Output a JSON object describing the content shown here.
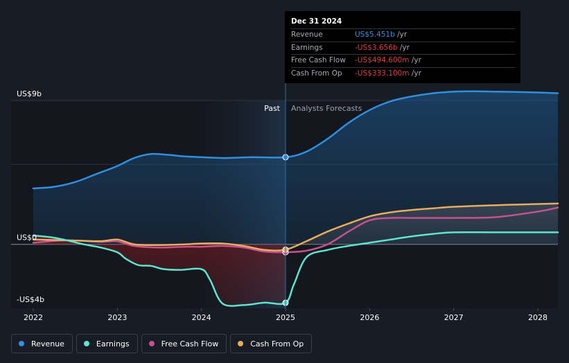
{
  "chart_data": {
    "type": "line",
    "x_ticks": [
      "2022",
      "2023",
      "2024",
      "2025",
      "2026",
      "2027",
      "2028"
    ],
    "y_tick_labels": [
      "US$9b",
      "US$0",
      "-US$4b"
    ],
    "region_labels": {
      "past": "Past",
      "forecast": "Analysts Forecasts"
    },
    "ylim": [
      -4,
      9
    ],
    "series": [
      {
        "name": "Revenue",
        "color": "#2f8fe0",
        "points": [
          [
            2022.0,
            3.5
          ],
          [
            2022.25,
            3.6
          ],
          [
            2022.5,
            3.9
          ],
          [
            2022.75,
            4.4
          ],
          [
            2023.0,
            4.9
          ],
          [
            2023.2,
            5.4
          ],
          [
            2023.4,
            5.65
          ],
          [
            2023.6,
            5.6
          ],
          [
            2023.8,
            5.5
          ],
          [
            2024.0,
            5.45
          ],
          [
            2024.3,
            5.4
          ],
          [
            2024.6,
            5.45
          ],
          [
            2025.0,
            5.451
          ],
          [
            2025.25,
            5.8
          ],
          [
            2025.5,
            6.6
          ],
          [
            2025.75,
            7.6
          ],
          [
            2026.0,
            8.4
          ],
          [
            2026.25,
            8.95
          ],
          [
            2026.5,
            9.25
          ],
          [
            2026.75,
            9.45
          ],
          [
            2027.0,
            9.55
          ],
          [
            2027.25,
            9.57
          ],
          [
            2027.5,
            9.55
          ],
          [
            2027.75,
            9.53
          ],
          [
            2028.0,
            9.5
          ],
          [
            2028.25,
            9.45
          ]
        ]
      },
      {
        "name": "Earnings",
        "color": "#5ce6cf",
        "points": [
          [
            2022.0,
            0.55
          ],
          [
            2022.2,
            0.45
          ],
          [
            2022.4,
            0.25
          ],
          [
            2022.6,
            0.0
          ],
          [
            2022.8,
            -0.2
          ],
          [
            2023.0,
            -0.5
          ],
          [
            2023.1,
            -0.9
          ],
          [
            2023.25,
            -1.3
          ],
          [
            2023.4,
            -1.35
          ],
          [
            2023.55,
            -1.55
          ],
          [
            2023.75,
            -1.6
          ],
          [
            2024.0,
            -1.55
          ],
          [
            2024.1,
            -2.2
          ],
          [
            2024.25,
            -3.7
          ],
          [
            2024.5,
            -3.8
          ],
          [
            2024.75,
            -3.65
          ],
          [
            2025.0,
            -3.656
          ],
          [
            2025.1,
            -2.5
          ],
          [
            2025.25,
            -0.8
          ],
          [
            2025.5,
            -0.35
          ],
          [
            2025.75,
            -0.1
          ],
          [
            2026.0,
            0.1
          ],
          [
            2026.25,
            0.3
          ],
          [
            2026.5,
            0.5
          ],
          [
            2026.75,
            0.65
          ],
          [
            2027.0,
            0.75
          ],
          [
            2027.5,
            0.75
          ],
          [
            2028.0,
            0.75
          ],
          [
            2028.25,
            0.75
          ]
        ]
      },
      {
        "name": "Free Cash Flow",
        "color": "#c7508f",
        "points": [
          [
            2022.0,
            0.1
          ],
          [
            2022.4,
            0.25
          ],
          [
            2022.8,
            0.15
          ],
          [
            2023.0,
            0.18
          ],
          [
            2023.2,
            -0.1
          ],
          [
            2023.5,
            -0.2
          ],
          [
            2023.8,
            -0.15
          ],
          [
            2024.0,
            -0.15
          ],
          [
            2024.25,
            -0.1
          ],
          [
            2024.5,
            -0.2
          ],
          [
            2024.75,
            -0.45
          ],
          [
            2025.0,
            -0.495
          ],
          [
            2025.25,
            -0.4
          ],
          [
            2025.5,
            0.0
          ],
          [
            2025.75,
            0.8
          ],
          [
            2026.0,
            1.5
          ],
          [
            2026.25,
            1.65
          ],
          [
            2026.5,
            1.65
          ],
          [
            2027.0,
            1.65
          ],
          [
            2027.5,
            1.7
          ],
          [
            2028.0,
            2.05
          ],
          [
            2028.25,
            2.3
          ]
        ]
      },
      {
        "name": "Cash From Op",
        "color": "#e8ac5c",
        "points": [
          [
            2022.0,
            0.3
          ],
          [
            2022.4,
            0.25
          ],
          [
            2022.8,
            0.2
          ],
          [
            2023.0,
            0.3
          ],
          [
            2023.2,
            0.0
          ],
          [
            2023.5,
            -0.05
          ],
          [
            2023.8,
            0.0
          ],
          [
            2024.0,
            0.05
          ],
          [
            2024.25,
            0.05
          ],
          [
            2024.5,
            -0.1
          ],
          [
            2024.75,
            -0.35
          ],
          [
            2025.0,
            -0.333
          ],
          [
            2025.25,
            0.2
          ],
          [
            2025.5,
            0.8
          ],
          [
            2025.75,
            1.3
          ],
          [
            2026.0,
            1.75
          ],
          [
            2026.25,
            2.0
          ],
          [
            2026.5,
            2.15
          ],
          [
            2026.75,
            2.25
          ],
          [
            2027.0,
            2.35
          ],
          [
            2027.5,
            2.45
          ],
          [
            2028.0,
            2.52
          ],
          [
            2028.25,
            2.55
          ]
        ]
      }
    ],
    "tooltip": {
      "date": "Dec 31 2024",
      "rows": [
        {
          "label": "Revenue",
          "value": "US$5.451b",
          "unit": "/yr",
          "color": "#2f8fe0"
        },
        {
          "label": "Earnings",
          "value": "-US$3.656b",
          "unit": "/yr",
          "color": "#e8393d"
        },
        {
          "label": "Free Cash Flow",
          "value": "-US$494.600m",
          "unit": "/yr",
          "color": "#e8393d"
        },
        {
          "label": "Cash From Op",
          "value": "-US$333.100m",
          "unit": "/yr",
          "color": "#e8393d"
        }
      ]
    },
    "highlight_x": 2025.0,
    "past_region": [
      2024.0,
      2025.0
    ]
  },
  "legend": [
    {
      "label": "Revenue",
      "color": "#2f8fe0"
    },
    {
      "label": "Earnings",
      "color": "#5ce6cf"
    },
    {
      "label": "Free Cash Flow",
      "color": "#c7508f"
    },
    {
      "label": "Cash From Op",
      "color": "#e8ac5c"
    }
  ]
}
